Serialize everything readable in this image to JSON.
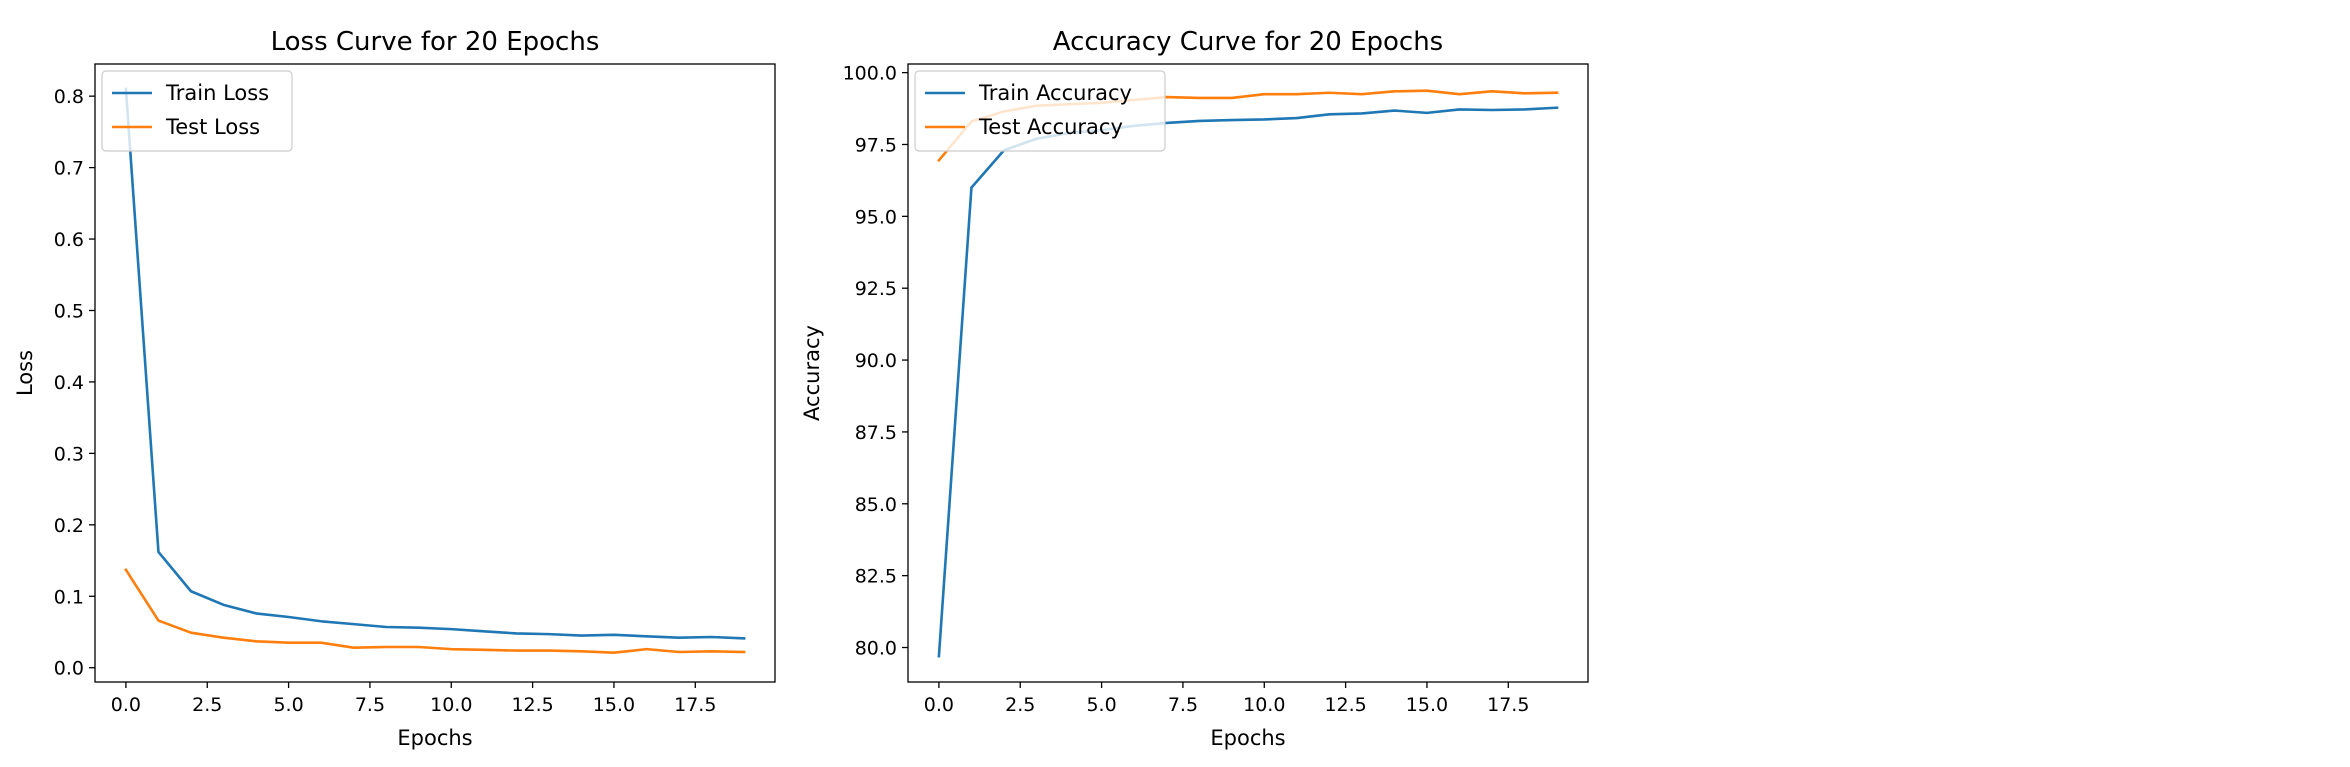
{
  "chart_data": [
    {
      "type": "line",
      "title": "Loss Curve for 20 Epochs",
      "xlabel": "Epochs",
      "ylabel": "Loss",
      "xlim": [
        -0.95,
        19.95
      ],
      "ylim": [
        -0.02,
        0.845
      ],
      "xticks": [
        0.0,
        2.5,
        5.0,
        7.5,
        10.0,
        12.5,
        15.0,
        17.5
      ],
      "xtick_labels": [
        "0.0",
        "2.5",
        "5.0",
        "7.5",
        "10.0",
        "12.5",
        "15.0",
        "17.5"
      ],
      "yticks": [
        0.0,
        0.1,
        0.2,
        0.3,
        0.4,
        0.5,
        0.6,
        0.7,
        0.8
      ],
      "ytick_labels": [
        "0.0",
        "0.1",
        "0.2",
        "0.3",
        "0.4",
        "0.5",
        "0.6",
        "0.7",
        "0.8"
      ],
      "legend_position": "top-left",
      "x": [
        0,
        1,
        2,
        3,
        4,
        5,
        6,
        7,
        8,
        9,
        10,
        11,
        12,
        13,
        14,
        15,
        16,
        17,
        18,
        19
      ],
      "series": [
        {
          "name": "Train Loss",
          "color": "#1f77b4",
          "values": [
            0.81,
            0.162,
            0.107,
            0.088,
            0.076,
            0.071,
            0.065,
            0.061,
            0.057,
            0.056,
            0.054,
            0.051,
            0.048,
            0.047,
            0.045,
            0.046,
            0.044,
            0.042,
            0.043,
            0.041
          ]
        },
        {
          "name": "Test Loss",
          "color": "#ff7f0e",
          "values": [
            0.137,
            0.066,
            0.049,
            0.042,
            0.037,
            0.035,
            0.035,
            0.028,
            0.029,
            0.029,
            0.026,
            0.025,
            0.024,
            0.024,
            0.023,
            0.021,
            0.026,
            0.022,
            0.023,
            0.022
          ]
        }
      ]
    },
    {
      "type": "line",
      "title": "Accuracy Curve for 20 Epochs",
      "xlabel": "Epochs",
      "ylabel": "Accuracy",
      "xlim": [
        -0.95,
        19.95
      ],
      "ylim": [
        78.8,
        100.3
      ],
      "xticks": [
        0.0,
        2.5,
        5.0,
        7.5,
        10.0,
        12.5,
        15.0,
        17.5
      ],
      "xtick_labels": [
        "0.0",
        "2.5",
        "5.0",
        "7.5",
        "10.0",
        "12.5",
        "15.0",
        "17.5"
      ],
      "yticks": [
        80.0,
        82.5,
        85.0,
        87.5,
        90.0,
        92.5,
        95.0,
        97.5,
        100.0
      ],
      "ytick_labels": [
        "80.0",
        "82.5",
        "85.0",
        "87.5",
        "90.0",
        "92.5",
        "95.0",
        "97.5",
        "100.0"
      ],
      "legend_position": "top-left",
      "x": [
        0,
        1,
        2,
        3,
        4,
        5,
        6,
        7,
        8,
        9,
        10,
        11,
        12,
        13,
        14,
        15,
        16,
        17,
        18,
        19
      ],
      "series": [
        {
          "name": "Train Accuracy",
          "color": "#1f77b4",
          "values": [
            79.7,
            96.0,
            97.3,
            97.7,
            97.9,
            98.0,
            98.15,
            98.25,
            98.32,
            98.35,
            98.37,
            98.42,
            98.55,
            98.58,
            98.68,
            98.6,
            98.72,
            98.7,
            98.72,
            98.78
          ]
        },
        {
          "name": "Test Accuracy",
          "color": "#ff7f0e",
          "values": [
            96.95,
            98.3,
            98.65,
            98.85,
            98.9,
            98.95,
            99.05,
            99.15,
            99.12,
            99.12,
            99.25,
            99.25,
            99.3,
            99.25,
            99.35,
            99.37,
            99.25,
            99.35,
            99.28,
            99.3
          ]
        }
      ]
    }
  ]
}
